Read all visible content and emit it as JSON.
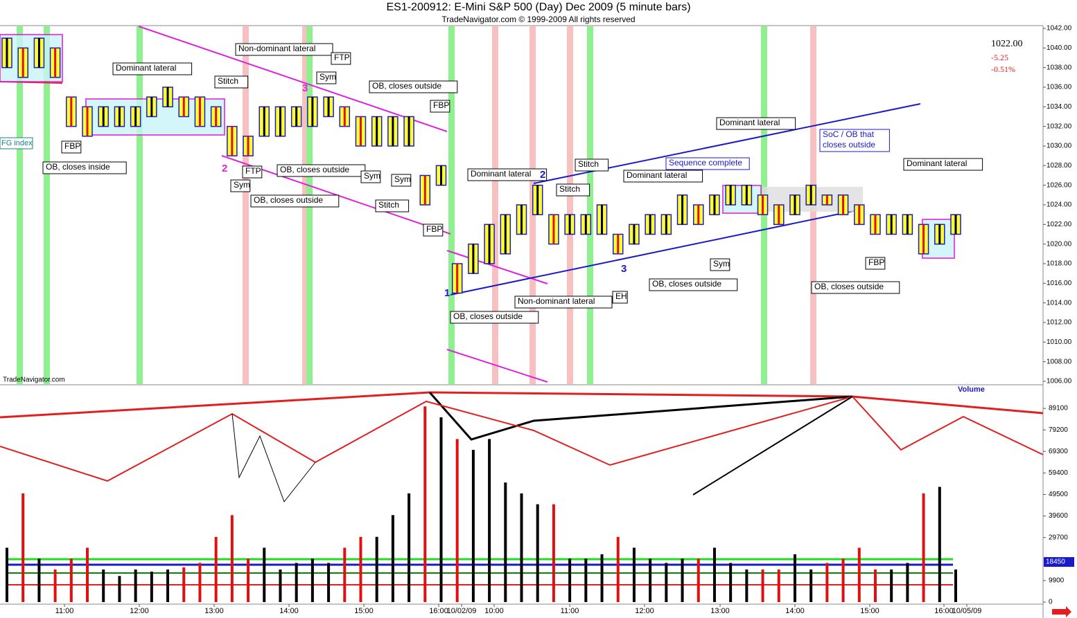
{
  "chart_data": {
    "type": "range_bar",
    "title": "ES1-200912:  E-Mini S&P 500 (Day) Dec 2009  (5 minute bars)",
    "subtitle": "TradeNavigator.com © 1999-2009 All rights reserved",
    "watermark": "TradeNavigator.com",
    "index_label": "FG index",
    "volume_label": "Volume",
    "quote": {
      "last": "1022.00",
      "change": "-5.25",
      "change_pct": "-0.51%"
    },
    "ylim": [
      1006,
      1042
    ],
    "yticks": [
      {
        "value": 1006,
        "label": "1006.00"
      },
      {
        "value": 1008,
        "label": "1008.00"
      },
      {
        "value": 1010,
        "label": "1010.00"
      },
      {
        "value": 1012,
        "label": "1012.00"
      },
      {
        "value": 1014,
        "label": "1014.00"
      },
      {
        "value": 1016,
        "label": "1016.00"
      },
      {
        "value": 1018,
        "label": "1018.00"
      },
      {
        "value": 1020,
        "label": "1020.00"
      },
      {
        "value": 1022,
        "label": "1022.00"
      },
      {
        "value": 1024,
        "label": "1024.00"
      },
      {
        "value": 1026,
        "label": "1026.00"
      },
      {
        "value": 1028,
        "label": "1028.00"
      },
      {
        "value": 1030,
        "label": "1030.00"
      },
      {
        "value": 1032,
        "label": "1032.00"
      },
      {
        "value": 1034,
        "label": "1034.00"
      },
      {
        "value": 1036,
        "label": "1036.00"
      },
      {
        "value": 1038,
        "label": "1038.00"
      },
      {
        "value": 1040,
        "label": "1040.00"
      },
      {
        "value": 1042,
        "label": "1042.00"
      }
    ],
    "highs": [
      1041,
      1040,
      1041,
      1040,
      1035,
      1034,
      1034,
      1034,
      1034,
      1035,
      1036,
      1035,
      1035,
      1034,
      1032,
      1031,
      1034,
      1034,
      1034,
      1035,
      1035,
      1034,
      1033,
      1033,
      1033,
      1033,
      1027,
      1028,
      1018,
      1020,
      1022,
      1023,
      1024,
      1026,
      1023,
      1023,
      1023,
      1024,
      1021,
      1022,
      1023,
      1023,
      1025,
      1024,
      1025,
      1026,
      1026,
      1025,
      1024,
      1025,
      1026,
      1025,
      1025,
      1024,
      1023,
      1023,
      1023,
      1022,
      1022,
      1023
    ],
    "lows": [
      1038,
      1037,
      1038,
      1037,
      1032,
      1031,
      1032,
      1032,
      1032,
      1033,
      1034,
      1033,
      1032,
      1032,
      1029,
      1029,
      1031,
      1031,
      1032,
      1032,
      1033,
      1032,
      1030,
      1030,
      1030,
      1030,
      1024,
      1026,
      1015,
      1017,
      1018,
      1019,
      1021,
      1023,
      1020,
      1021,
      1021,
      1021,
      1019,
      1020,
      1021,
      1021,
      1022,
      1022,
      1023,
      1024,
      1024,
      1023,
      1022,
      1023,
      1024,
      1024,
      1023,
      1022,
      1021,
      1021,
      1021,
      1019,
      1020,
      1021
    ],
    "volumes": [
      25000,
      50000,
      20000,
      15000,
      20000,
      25000,
      15000,
      12000,
      15000,
      14000,
      15000,
      16000,
      18000,
      30000,
      40000,
      20000,
      25000,
      15000,
      18000,
      20000,
      18000,
      25000,
      30000,
      30000,
      40000,
      50000,
      90000,
      85000,
      75000,
      70000,
      75000,
      55000,
      50000,
      45000,
      45000,
      20000,
      20000,
      22000,
      30000,
      25000,
      20000,
      18000,
      20000,
      20000,
      25000,
      18000,
      15000,
      15000,
      15000,
      22000,
      15000,
      18000,
      20000,
      25000,
      15000,
      15000,
      18000,
      50000,
      53000,
      15000
    ],
    "vlim": [
      0,
      99000
    ],
    "vticks": [
      0,
      9900,
      29700,
      39600,
      49500,
      59400,
      69300,
      79200,
      89100
    ],
    "last_volume": 18450,
    "time_labels": [
      "11:00",
      "12:00",
      "13:00",
      "14:00",
      "15:00",
      "16:00",
      "10/02/09",
      "10:00",
      "11:00",
      "12:00",
      "13:00",
      "14:00",
      "15:00",
      "16:00",
      "10/05/09"
    ],
    "annotations": [
      [
        "Dominant lateral"
      ],
      [
        "Non-dominant lateral"
      ],
      [
        "Stitch"
      ],
      [
        "FTP"
      ],
      [
        "Sym"
      ],
      [
        "OB, closes outside"
      ],
      [
        "FBP"
      ],
      [
        "FBP"
      ],
      [
        "OB, closes inside"
      ],
      [
        "FTP"
      ],
      [
        "Sym"
      ],
      [
        "OB, closes outside"
      ],
      [
        "OB, closes outside"
      ],
      [
        "Sym"
      ],
      [
        "Sym"
      ],
      [
        "Stitch"
      ],
      [
        "FBP"
      ],
      [
        "Dominant lateral"
      ],
      [
        "Stitch"
      ],
      [
        "Stitch"
      ],
      [
        "Dominant lateral"
      ],
      [
        "Sequence complete"
      ],
      [
        "Dominant lateral"
      ],
      [
        "SoC / OB that",
        "closes outside"
      ],
      [
        "Dominant lateral"
      ],
      [
        "Non-dominant lateral"
      ],
      [
        "OB, closes outside"
      ],
      [
        "EH"
      ],
      [
        "OB, closes outside"
      ],
      [
        "Sym"
      ],
      [
        "FBP"
      ],
      [
        "OB, closes outside"
      ]
    ],
    "wave_labels": [
      "2",
      "3",
      "1",
      "2",
      "3"
    ]
  }
}
